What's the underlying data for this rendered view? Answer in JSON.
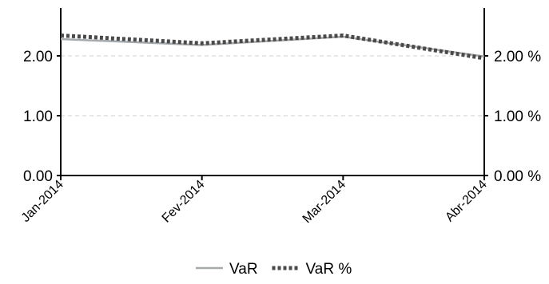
{
  "chart_data": {
    "type": "line",
    "categories": [
      "Jan-2014",
      "Fev-2014",
      "Mar-2014",
      "Abr-2014"
    ],
    "series": [
      {
        "name": "VaR",
        "values": [
          2.28,
          2.18,
          2.32,
          1.99
        ],
        "color": "#a6aaad",
        "style": "solid",
        "axis": "left"
      },
      {
        "name": "VaR %",
        "values": [
          2.34,
          2.21,
          2.34,
          1.96
        ],
        "color": "#4a4a4a",
        "style": "dotted",
        "axis": "right"
      }
    ],
    "y_left": {
      "ticks": [
        0,
        1,
        2
      ],
      "tick_labels": [
        "0.00",
        "1.00",
        "2.00"
      ],
      "range": [
        0,
        2.8
      ]
    },
    "y_right": {
      "ticks": [
        0,
        1,
        2
      ],
      "tick_labels": [
        "0.00 %",
        "1.00 %",
        "2.00 %"
      ],
      "range": [
        0,
        2.8
      ]
    },
    "grid": {
      "horizontal": true,
      "style": "dashed",
      "color": "#cccccc"
    },
    "legend": {
      "position": "bottom-center"
    },
    "title": "",
    "xlabel": "",
    "ylabel": ""
  }
}
